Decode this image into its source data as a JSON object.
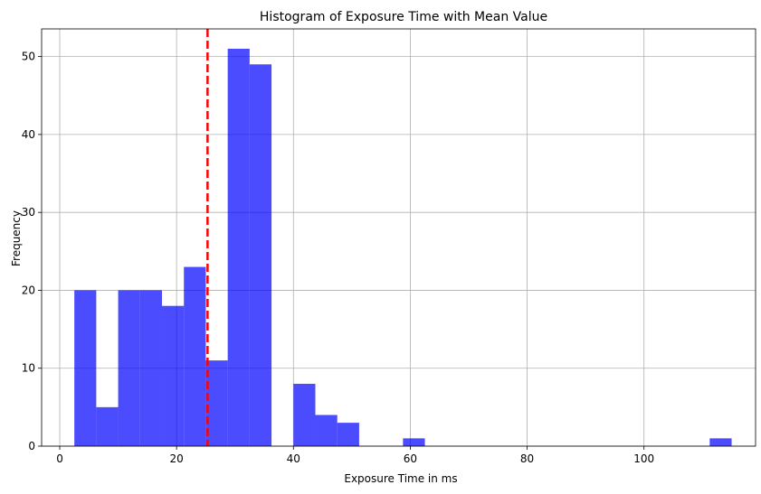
{
  "chart_data": {
    "type": "bar",
    "subtype": "histogram",
    "title": "Histogram of Exposure Time with Mean Value",
    "xlabel": "Exposure Time in ms",
    "ylabel": "Frequency",
    "xlim": [
      -3.1,
      119.1
    ],
    "ylim": [
      0,
      53.55
    ],
    "xticks": [
      0,
      20,
      40,
      60,
      80,
      100
    ],
    "yticks": [
      0,
      10,
      20,
      30,
      40,
      50
    ],
    "grid": true,
    "bin_start": 2.5,
    "bin_width": 3.75,
    "counts": [
      20,
      5,
      20,
      20,
      18,
      23,
      11,
      51,
      49,
      0,
      8,
      4,
      3,
      0,
      0,
      1,
      0,
      0,
      0,
      0,
      0,
      0,
      0,
      0,
      0,
      0,
      0,
      0,
      0,
      1
    ],
    "bar_color": "#0000ff",
    "bar_opacity": 0.7,
    "mean_line": {
      "value": 25.3,
      "color": "#ff0000",
      "style": "dashed"
    }
  }
}
